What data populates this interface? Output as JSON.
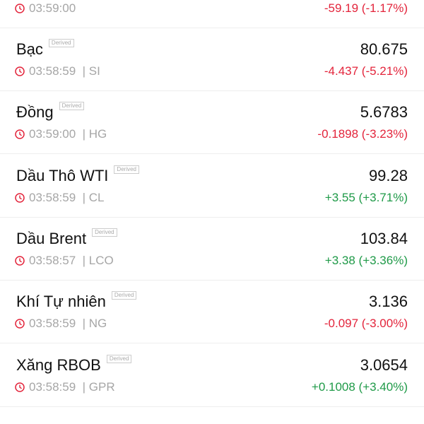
{
  "colors": {
    "negative": "#e3243b",
    "positive": "#1f9a48",
    "clock": "#e3243b"
  },
  "badge_label": "Derived",
  "top_partial": {
    "time": "03:59:00",
    "change": "-59.19 (-1.17%)",
    "direction": "neg"
  },
  "items": [
    {
      "name": "Bạc",
      "value": "80.675",
      "time": "03:58:59",
      "symbol": "| SI",
      "change": "-4.437 (-5.21%)",
      "direction": "neg"
    },
    {
      "name": "Đồng",
      "value": "5.6783",
      "time": "03:59:00",
      "symbol": "| HG",
      "change": "-0.1898 (-3.23%)",
      "direction": "neg"
    },
    {
      "name": "Dầu Thô WTI",
      "value": "99.28",
      "time": "03:58:59",
      "symbol": "| CL",
      "change": "+3.55 (+3.71%)",
      "direction": "pos"
    },
    {
      "name": "Dầu Brent",
      "value": "103.84",
      "time": "03:58:57",
      "symbol": "| LCO",
      "change": "+3.38 (+3.36%)",
      "direction": "pos"
    },
    {
      "name": "Khí Tự nhiên",
      "value": "3.136",
      "time": "03:58:59",
      "symbol": "| NG",
      "change": "-0.097 (-3.00%)",
      "direction": "neg"
    },
    {
      "name": "Xăng RBOB",
      "value": "3.0654",
      "time": "03:58:59",
      "symbol": "| GPR",
      "change": "+0.1008 (+3.40%)",
      "direction": "pos"
    }
  ]
}
